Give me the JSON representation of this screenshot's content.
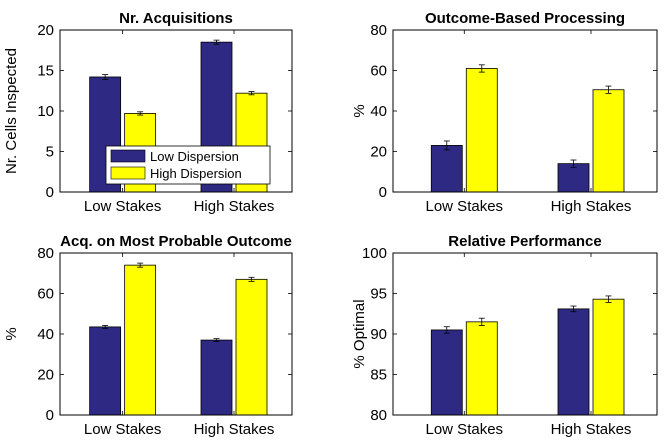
{
  "chart_data": [
    {
      "type": "bar",
      "title": "Nr. Acquisitions",
      "ylabel": "Nr. Cells Inspected",
      "xlabel": "",
      "categories": [
        "Low Stakes",
        "High Stakes"
      ],
      "ylim": [
        0,
        20
      ],
      "yticks": [
        0,
        5,
        10,
        15,
        20
      ],
      "series": [
        {
          "name": "Low Dispersion",
          "color": "#2e2a84",
          "values": [
            14.2,
            18.5
          ],
          "errors": [
            0.3,
            0.25
          ]
        },
        {
          "name": "High Dispersion",
          "color": "#ffff00",
          "values": [
            9.7,
            12.2
          ],
          "errors": [
            0.2,
            0.2
          ]
        }
      ],
      "legend": "lower-left"
    },
    {
      "type": "bar",
      "title": "Outcome-Based Processing",
      "ylabel": "%",
      "xlabel": "",
      "categories": [
        "Low Stakes",
        "High Stakes"
      ],
      "ylim": [
        0,
        80
      ],
      "yticks": [
        0,
        20,
        40,
        60,
        80
      ],
      "series": [
        {
          "name": "Low Dispersion",
          "color": "#2e2a84",
          "values": [
            23,
            14
          ],
          "errors": [
            2.2,
            1.8
          ]
        },
        {
          "name": "High Dispersion",
          "color": "#ffff00",
          "values": [
            61,
            50.5
          ],
          "errors": [
            1.8,
            1.8
          ]
        }
      ]
    },
    {
      "type": "bar",
      "title": "Acq. on Most Probable Outcome",
      "ylabel": "%",
      "xlabel": "",
      "categories": [
        "Low Stakes",
        "High Stakes"
      ],
      "ylim": [
        0,
        80
      ],
      "yticks": [
        0,
        20,
        40,
        60,
        80
      ],
      "series": [
        {
          "name": "Low Dispersion",
          "color": "#2e2a84",
          "values": [
            43.5,
            37
          ],
          "errors": [
            0.7,
            0.7
          ]
        },
        {
          "name": "High Dispersion",
          "color": "#ffff00",
          "values": [
            74,
            67
          ],
          "errors": [
            1.0,
            1.0
          ]
        }
      ]
    },
    {
      "type": "bar",
      "title": "Relative Performance",
      "ylabel": "% Optimal",
      "xlabel": "",
      "categories": [
        "Low Stakes",
        "High Stakes"
      ],
      "ylim": [
        80,
        100
      ],
      "yticks": [
        80,
        85,
        90,
        95,
        100
      ],
      "series": [
        {
          "name": "Low Dispersion",
          "color": "#2e2a84",
          "values": [
            90.5,
            93.1
          ],
          "errors": [
            0.4,
            0.35
          ]
        },
        {
          "name": "High Dispersion",
          "color": "#ffff00",
          "values": [
            91.5,
            94.3
          ],
          "errors": [
            0.45,
            0.4
          ]
        }
      ]
    }
  ]
}
